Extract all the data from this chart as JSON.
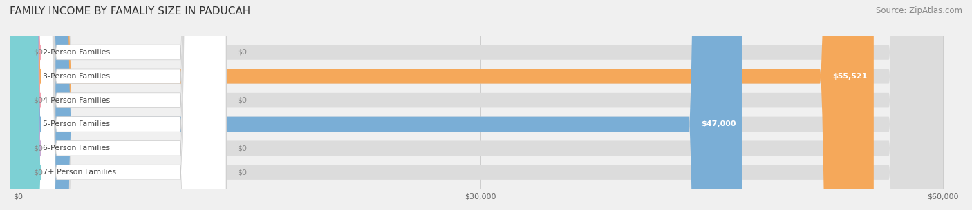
{
  "title": "FAMILY INCOME BY FAMALIY SIZE IN PADUCAH",
  "source": "Source: ZipAtlas.com",
  "categories": [
    "2-Person Families",
    "3-Person Families",
    "4-Person Families",
    "5-Person Families",
    "6-Person Families",
    "7+ Person Families"
  ],
  "values": [
    0,
    55521,
    0,
    47000,
    0,
    0
  ],
  "bar_colors": [
    "#f4a0b0",
    "#f5a85a",
    "#f4a0b0",
    "#7aaed6",
    "#c9a8d4",
    "#7dd0d4"
  ],
  "label_colors": [
    "#888888",
    "#ffffff",
    "#888888",
    "#ffffff",
    "#888888",
    "#888888"
  ],
  "value_labels": [
    "$0",
    "$55,521",
    "$0",
    "$47,000",
    "$0",
    "$0"
  ],
  "xlim": [
    0,
    60000
  ],
  "xticks": [
    0,
    30000,
    60000
  ],
  "xticklabels": [
    "$0",
    "$30,000",
    "$60,000"
  ],
  "background_color": "#f0f0f0",
  "bar_bg_color": "#e8e8e8",
  "bar_height": 0.62,
  "title_fontsize": 11,
  "source_fontsize": 8.5,
  "label_fontsize": 8,
  "value_fontsize": 8
}
